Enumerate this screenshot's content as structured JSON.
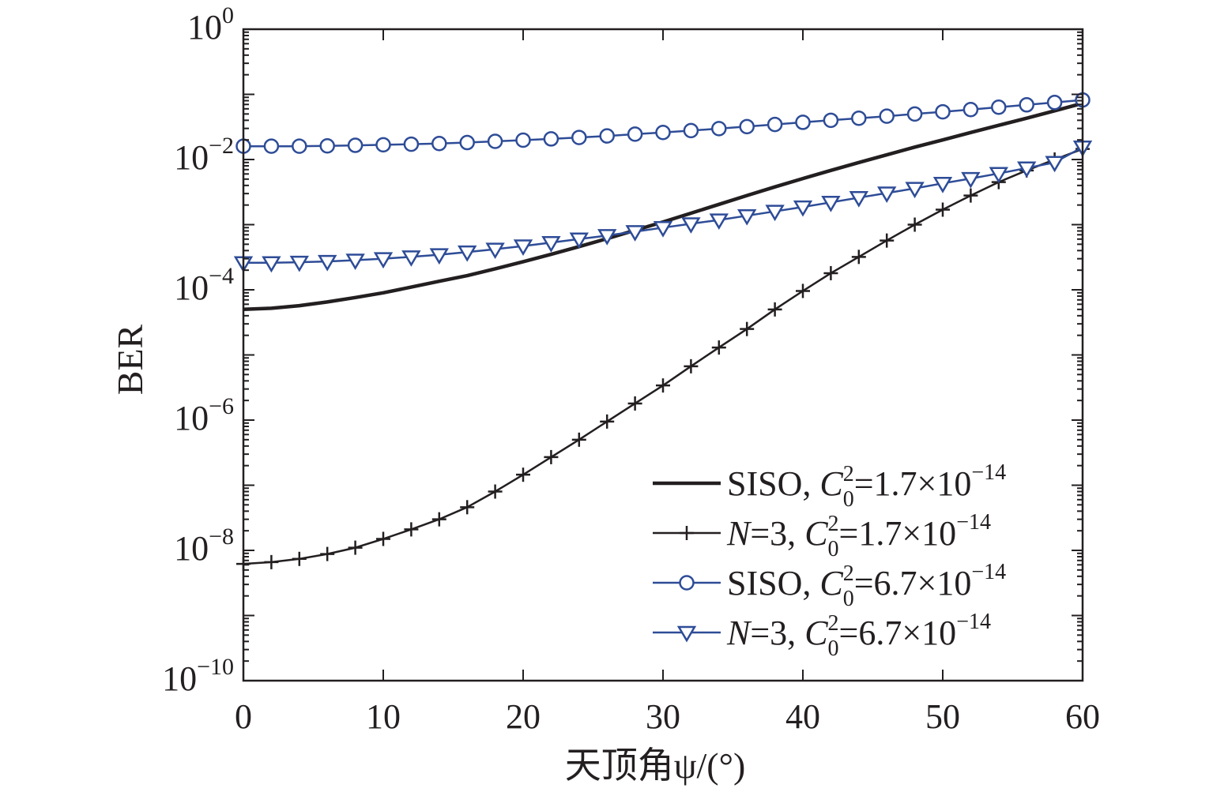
{
  "chart_data": {
    "type": "line",
    "xlabel": "天顶角ψ/(°)",
    "ylabel": "BER",
    "xlim": [
      0,
      60
    ],
    "ylim": [
      1e-10,
      1
    ],
    "yscale": "log",
    "grid": false,
    "legend_position": "lower-right",
    "x_ticks": [
      0,
      10,
      20,
      30,
      40,
      50,
      60
    ],
    "x_tick_labels": [
      "0",
      "10",
      "20",
      "30",
      "40",
      "50",
      "60"
    ],
    "y_ticks": [
      1e-10,
      1e-08,
      1e-06,
      0.0001,
      0.01,
      1
    ],
    "y_tick_labels": [
      {
        "base": "10",
        "exp": "−10"
      },
      {
        "base": "10",
        "exp": "−8"
      },
      {
        "base": "10",
        "exp": "−6"
      },
      {
        "base": "10",
        "exp": "−4"
      },
      {
        "base": "10",
        "exp": "−2"
      },
      {
        "base": "10",
        "exp": "0"
      }
    ],
    "x": [
      0,
      2,
      4,
      6,
      8,
      10,
      12,
      14,
      16,
      18,
      20,
      22,
      24,
      26,
      28,
      30,
      32,
      34,
      36,
      38,
      40,
      42,
      44,
      46,
      48,
      50,
      52,
      54,
      56,
      58,
      60
    ],
    "series": [
      {
        "legend_prefix": "SISO",
        "legend_value": "1.7×10",
        "legend_exp": "−14",
        "color": "#231f20",
        "marker": "none",
        "line_width": 4.5,
        "values": [
          5e-05,
          5.2e-05,
          5.7e-05,
          6.5e-05,
          7.6e-05,
          9e-05,
          0.00011,
          0.000135,
          0.000165,
          0.00021,
          0.00027,
          0.00035,
          0.00046,
          0.00061,
          0.00082,
          0.0011,
          0.0015,
          0.00205,
          0.0028,
          0.0038,
          0.0051,
          0.0068,
          0.009,
          0.0118,
          0.0155,
          0.02,
          0.026,
          0.0335,
          0.043,
          0.056,
          0.073
        ]
      },
      {
        "legend_prefix": "N",
        "legend_prefix_suffix": "=3",
        "legend_value": "1.7×10",
        "legend_exp": "−14",
        "color": "#231f20",
        "marker": "plus",
        "line_width": 2.5,
        "values": [
          6.2e-09,
          6.6e-09,
          7.4e-09,
          8.8e-09,
          1.1e-08,
          1.5e-08,
          2.1e-08,
          3e-08,
          4.6e-08,
          8e-08,
          1.45e-07,
          2.7e-07,
          5e-07,
          9.5e-07,
          1.8e-06,
          3.4e-06,
          6.7e-06,
          1.3e-05,
          2.5e-05,
          5e-05,
          9.6e-05,
          0.00018,
          0.00032,
          0.00057,
          0.001,
          0.0017,
          0.0028,
          0.0045,
          0.0068,
          0.01,
          0.0145
        ]
      },
      {
        "legend_prefix": "SISO",
        "legend_value": "6.7×10",
        "legend_exp": "−14",
        "color": "#2e4c97",
        "marker": "circle",
        "line_width": 2.5,
        "values": [
          0.016,
          0.016,
          0.016,
          0.0162,
          0.0165,
          0.0168,
          0.0172,
          0.0176,
          0.0182,
          0.019,
          0.0198,
          0.0207,
          0.0218,
          0.023,
          0.0245,
          0.026,
          0.0278,
          0.0298,
          0.032,
          0.0345,
          0.0372,
          0.04,
          0.043,
          0.0462,
          0.05,
          0.054,
          0.0585,
          0.0635,
          0.069,
          0.075,
          0.082
        ]
      },
      {
        "legend_prefix": "N",
        "legend_prefix_suffix": "=3",
        "legend_value": "6.7×10",
        "legend_exp": "−14",
        "color": "#2e4c97",
        "marker": "triangle-down",
        "line_width": 2.5,
        "values": [
          0.00026,
          0.00026,
          0.000265,
          0.000272,
          0.000285,
          0.0003,
          0.00032,
          0.000345,
          0.00038,
          0.00042,
          0.00047,
          0.00053,
          0.0006,
          0.00068,
          0.00078,
          0.0009,
          0.00103,
          0.00118,
          0.00137,
          0.0016,
          0.00187,
          0.0022,
          0.0026,
          0.00305,
          0.0036,
          0.0043,
          0.0051,
          0.0061,
          0.0074,
          0.009,
          0.0155
        ]
      }
    ]
  }
}
